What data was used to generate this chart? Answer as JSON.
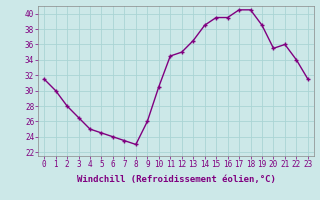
{
  "x": [
    0,
    1,
    2,
    3,
    4,
    5,
    6,
    7,
    8,
    9,
    10,
    11,
    12,
    13,
    14,
    15,
    16,
    17,
    18,
    19,
    20,
    21,
    22,
    23
  ],
  "y": [
    31.5,
    30,
    28,
    26.5,
    25,
    24.5,
    24,
    23.5,
    23,
    26,
    30.5,
    34.5,
    35,
    36.5,
    38.5,
    39.5,
    39.5,
    40.5,
    40.5,
    38.5,
    35.5,
    36,
    34,
    31.5
  ],
  "line_color": "#800080",
  "marker": "+",
  "marker_color": "#800080",
  "background_color": "#cce8e8",
  "grid_color": "#aad4d4",
  "xlabel": "Windchill (Refroidissement éolien,°C)",
  "xlim": [
    -0.5,
    23.5
  ],
  "ylim": [
    21.5,
    41
  ],
  "yticks": [
    22,
    24,
    26,
    28,
    30,
    32,
    34,
    36,
    38,
    40
  ],
  "xticks": [
    0,
    1,
    2,
    3,
    4,
    5,
    6,
    7,
    8,
    9,
    10,
    11,
    12,
    13,
    14,
    15,
    16,
    17,
    18,
    19,
    20,
    21,
    22,
    23
  ],
  "tick_label_color": "#800080",
  "label_fontsize": 6.5,
  "tick_fontsize": 5.5,
  "linewidth": 1.0,
  "markersize": 3.5
}
